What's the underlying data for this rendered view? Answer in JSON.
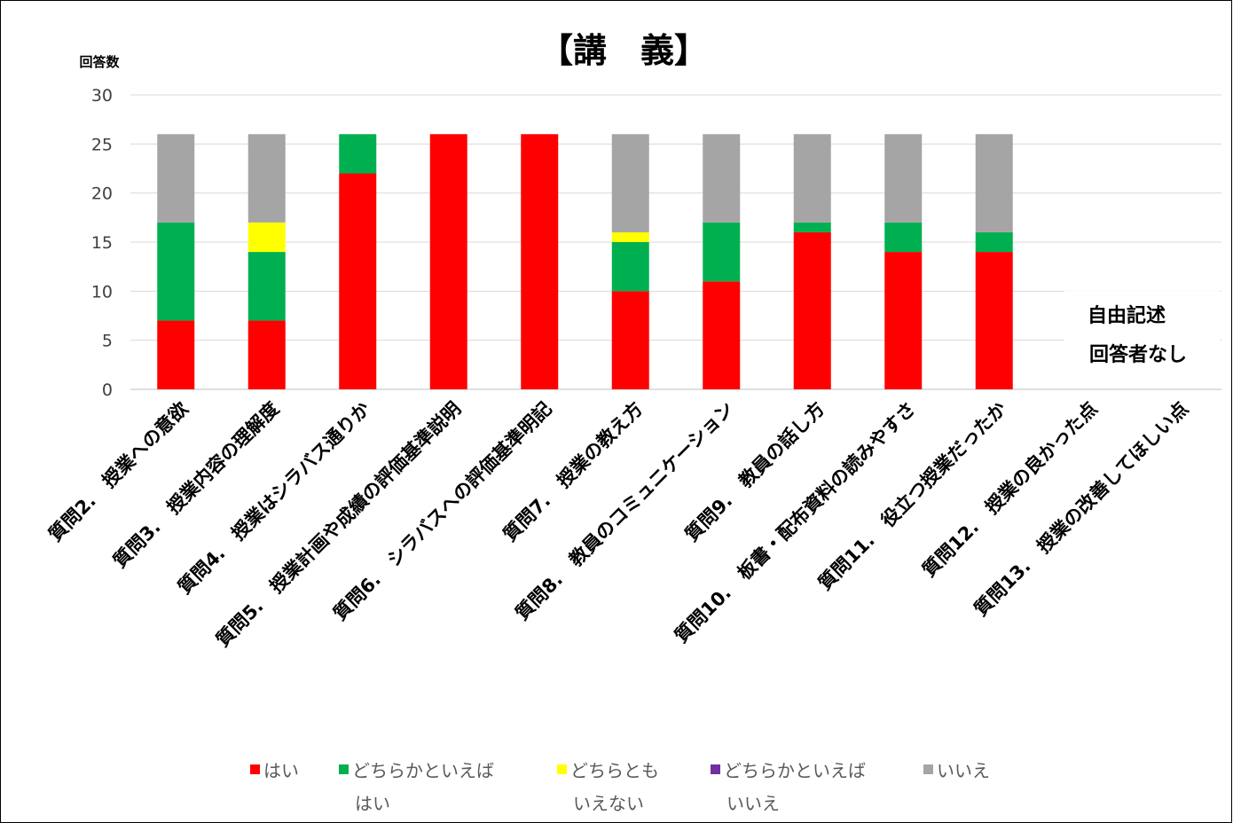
{
  "chart_data": {
    "type": "bar",
    "stacked": true,
    "title": "【講　義】",
    "ylabel": "回答数",
    "xlabel": "",
    "ylim": [
      0,
      30
    ],
    "yticks": [
      "0",
      "5",
      "10",
      "15",
      "20",
      "25",
      "30"
    ],
    "grid": true,
    "legend_position": "bottom",
    "categories": [
      "質問2.　授業への意欲",
      "質問3.　授業内容の理解度",
      "質問4.　授業はシラバス通りか",
      "質問5.　授業計画や成績の評価基準説明",
      "質問6.　シラバスへの評価基準明記",
      "質問7.　授業の教え方",
      "質問8.　教員のコミュニケーション",
      "質問9.　教員の話し方",
      "質問10.　板書・配布資料の読みやすさ",
      "質問11.　役立つ授業だったか",
      "質問12.　授業の良かった点",
      "質問13.　授業の改善してほしい点"
    ],
    "series": [
      {
        "name": "はい",
        "color": "#ff0000",
        "values": [
          7,
          7,
          22,
          26,
          26,
          10,
          11,
          16,
          14,
          14,
          0,
          0
        ]
      },
      {
        "name": "どちらかといえばはい",
        "color": "#00b050",
        "values": [
          10,
          7,
          4,
          0,
          0,
          5,
          6,
          1,
          3,
          2,
          0,
          0
        ]
      },
      {
        "name": "どちらともいえない",
        "color": "#ffff00",
        "values": [
          0,
          3,
          0,
          0,
          0,
          1,
          0,
          0,
          0,
          0,
          0,
          0
        ]
      },
      {
        "name": "どちらかといえばいいえ",
        "color": "#7030a0",
        "values": [
          0,
          0,
          0,
          0,
          0,
          0,
          0,
          0,
          0,
          0,
          0,
          0
        ]
      },
      {
        "name": "いいえ",
        "color": "#a5a5a5",
        "values": [
          9,
          9,
          0,
          0,
          0,
          10,
          9,
          9,
          9,
          10,
          0,
          0
        ]
      }
    ],
    "legend": [
      {
        "line1": "はい",
        "line2": ""
      },
      {
        "line1": "どちらかといえば",
        "line2": "はい"
      },
      {
        "line1": "どちらとも",
        "line2": "いえない"
      },
      {
        "line1": "どちらかといえば",
        "line2": "いいえ"
      },
      {
        "line1": "いいえ",
        "line2": ""
      }
    ],
    "annotation": [
      "自由記述",
      "回答者なし"
    ]
  }
}
